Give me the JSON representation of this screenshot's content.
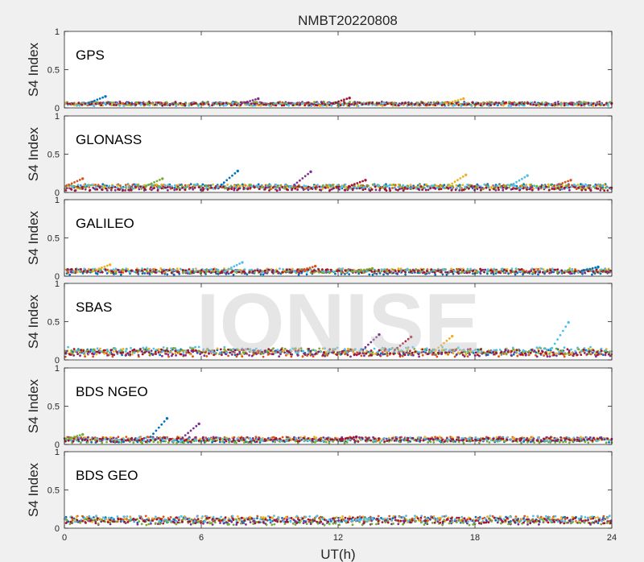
{
  "figure": {
    "title": "NMBT20220808",
    "xlabel": "UT(h)",
    "watermark": "IONISE"
  },
  "chart_data": {
    "type": "scatter",
    "xlim": [
      0,
      24
    ],
    "x_ticks": [
      0,
      6,
      12,
      18,
      24
    ],
    "grid": false,
    "series_colors": [
      "#0072BD",
      "#D95319",
      "#EDB120",
      "#7E2F8E",
      "#77AC30",
      "#4DBEEE",
      "#A2142F"
    ],
    "panels": [
      {
        "label": "GPS",
        "ylabel": "S4 Index",
        "ylim": [
          0,
          1
        ],
        "y_ticks": [
          0,
          0.5,
          1
        ],
        "typical_level": 0.05,
        "peaks": [
          {
            "x": 1.8,
            "y": 0.15
          },
          {
            "x": 8.5,
            "y": 0.12
          },
          {
            "x": 12.5,
            "y": 0.13
          },
          {
            "x": 17.5,
            "y": 0.12
          }
        ]
      },
      {
        "label": "GLONASS",
        "ylabel": "S4 Index",
        "ylim": [
          0,
          1
        ],
        "y_ticks": [
          0,
          0.5,
          1
        ],
        "typical_level": 0.07,
        "peaks": [
          {
            "x": 0.8,
            "y": 0.18
          },
          {
            "x": 4.3,
            "y": 0.18
          },
          {
            "x": 7.6,
            "y": 0.28
          },
          {
            "x": 10.8,
            "y": 0.27
          },
          {
            "x": 13.2,
            "y": 0.16
          },
          {
            "x": 17.6,
            "y": 0.23
          },
          {
            "x": 20.3,
            "y": 0.22
          },
          {
            "x": 22.2,
            "y": 0.16
          }
        ]
      },
      {
        "label": "GALILEO",
        "ylabel": "S4 Index",
        "ylim": [
          0,
          1
        ],
        "y_ticks": [
          0,
          0.5,
          1
        ],
        "typical_level": 0.06,
        "peaks": [
          {
            "x": 2.0,
            "y": 0.15
          },
          {
            "x": 7.8,
            "y": 0.18
          },
          {
            "x": 11.0,
            "y": 0.13
          },
          {
            "x": 13.5,
            "y": 0.1
          },
          {
            "x": 23.4,
            "y": 0.12
          }
        ]
      },
      {
        "label": "SBAS",
        "ylabel": "S4 Index",
        "ylim": [
          0,
          1
        ],
        "y_ticks": [
          0,
          0.5,
          1
        ],
        "typical_level": 0.1,
        "peaks": [
          {
            "x": 13.8,
            "y": 0.33
          },
          {
            "x": 15.2,
            "y": 0.3
          },
          {
            "x": 17.0,
            "y": 0.31
          },
          {
            "x": 22.1,
            "y": 0.49
          }
        ]
      },
      {
        "label": "BDS NGEO",
        "ylabel": "S4 Index",
        "ylim": [
          0,
          1
        ],
        "y_ticks": [
          0,
          0.5,
          1
        ],
        "typical_level": 0.06,
        "peaks": [
          {
            "x": 0.8,
            "y": 0.13
          },
          {
            "x": 4.5,
            "y": 0.34
          },
          {
            "x": 5.9,
            "y": 0.27
          },
          {
            "x": 12.8,
            "y": 0.1
          }
        ]
      },
      {
        "label": "BDS GEO",
        "ylabel": "S4 Index",
        "ylim": [
          0,
          1
        ],
        "y_ticks": [
          0,
          0.5,
          1
        ],
        "typical_level": 0.1,
        "peaks": [
          {
            "x": 13.5,
            "y": 0.13
          }
        ]
      }
    ]
  }
}
